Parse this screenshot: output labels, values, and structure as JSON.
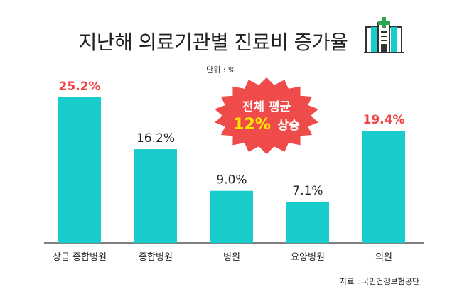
{
  "title": "지난해 의료기관별 진료비 증가율",
  "unit": "단위 : %",
  "source": "자료 : 국민건강보험공단",
  "callout": {
    "line1": "전체 평균",
    "highlight": "12%",
    "suffix": "상승"
  },
  "colors": {
    "bar": "#18CCCC",
    "highlight_label": "#F04040",
    "label": "#222222",
    "burst": "#F04B4B",
    "callout_highlight": "#FFE600"
  },
  "icon": "hospital-icon",
  "chart_data": {
    "type": "bar",
    "categories": [
      "상급 종합병원",
      "종합병원",
      "병원",
      "요양병원",
      "의원"
    ],
    "values": [
      25.2,
      16.2,
      9.0,
      7.1,
      19.4
    ],
    "value_labels": [
      "25.2%",
      "16.2%",
      "9.0%",
      "7.1%",
      "19.4%"
    ],
    "highlighted": [
      true,
      false,
      false,
      false,
      true
    ],
    "ylim": [
      0,
      28
    ],
    "grid": false
  }
}
